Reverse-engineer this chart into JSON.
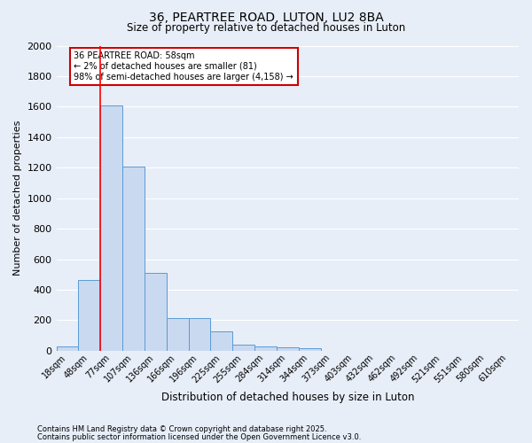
{
  "title1": "36, PEARTREE ROAD, LUTON, LU2 8BA",
  "title2": "Size of property relative to detached houses in Luton",
  "xlabel": "Distribution of detached houses by size in Luton",
  "ylabel": "Number of detached properties",
  "bar_color": "#c9d9f0",
  "bar_edge_color": "#5b9bd5",
  "background_color": "#e8eef8",
  "grid_color": "#ffffff",
  "red_line_x": 1,
  "categories": [
    "18sqm",
    "48sqm",
    "77sqm",
    "107sqm",
    "136sqm",
    "166sqm",
    "196sqm",
    "225sqm",
    "255sqm",
    "284sqm",
    "314sqm",
    "344sqm",
    "373sqm",
    "403sqm",
    "432sqm",
    "462sqm",
    "492sqm",
    "521sqm",
    "551sqm",
    "580sqm",
    "610sqm"
  ],
  "values": [
    30,
    462,
    1610,
    1210,
    510,
    215,
    215,
    125,
    40,
    30,
    20,
    15,
    0,
    0,
    0,
    0,
    0,
    0,
    0,
    0,
    0
  ],
  "ylim": [
    0,
    2000
  ],
  "yticks": [
    0,
    200,
    400,
    600,
    800,
    1000,
    1200,
    1400,
    1600,
    1800,
    2000
  ],
  "annotation_text": "36 PEARTREE ROAD: 58sqm\n← 2% of detached houses are smaller (81)\n98% of semi-detached houses are larger (4,158) →",
  "annotation_box_color": "#ffffff",
  "annotation_border_color": "#cc0000",
  "red_bar_index": 1,
  "footer1": "Contains HM Land Registry data © Crown copyright and database right 2025.",
  "footer2": "Contains public sector information licensed under the Open Government Licence v3.0."
}
